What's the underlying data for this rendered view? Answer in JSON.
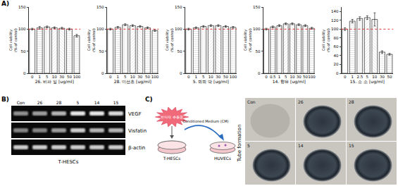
{
  "panel_labels": [
    "A)",
    "B)",
    "C)"
  ],
  "chart_data": [
    {
      "type": "bar",
      "categories": [
        "0",
        "1",
        "5",
        "10",
        "30",
        "50",
        "100"
      ],
      "values": [
        100,
        103,
        105,
        103,
        102,
        100,
        85
      ],
      "errors": [
        2,
        3,
        2,
        2,
        2,
        2,
        3
      ],
      "x_label": "26. 비파 잎 [ug/ml]",
      "y_label": "Cell viability\n(% of control)",
      "ylim": [
        0,
        150
      ],
      "yticks": [
        0,
        50,
        100,
        150
      ],
      "color": "#d9d9d9",
      "reference_line": 100
    },
    {
      "type": "bar",
      "categories": [
        "0",
        "1",
        "5",
        "10",
        "30",
        "50",
        "100"
      ],
      "values": [
        100,
        104,
        110,
        108,
        106,
        103,
        97
      ],
      "errors": [
        2,
        2,
        2,
        2,
        2,
        2,
        2
      ],
      "x_label": "28. 미선초 [ug/ml]",
      "y_label": "Cell viability\n(% of control)",
      "ylim": [
        0,
        150
      ],
      "yticks": [
        0,
        50,
        100,
        150
      ],
      "color": "#d9d9d9",
      "reference_line": 100
    },
    {
      "type": "bar",
      "categories": [
        "0",
        "1",
        "5",
        "10",
        "30",
        "50",
        "100"
      ],
      "values": [
        100,
        103,
        106,
        108,
        108,
        106,
        104
      ],
      "errors": [
        2,
        2,
        2,
        2,
        2,
        2,
        2
      ],
      "x_label": "5. 뫼뫼 박 [ug/ml]",
      "y_label": "Cell viability\n(% of control)",
      "ylim": [
        0,
        150
      ],
      "yticks": [
        0,
        50,
        100,
        150
      ],
      "color": "#d9d9d9",
      "reference_line": 100
    },
    {
      "type": "bar",
      "categories": [
        "0",
        "0.5",
        "1",
        "5",
        "10",
        "30",
        "50",
        "100"
      ],
      "values": [
        100,
        105,
        108,
        112,
        112,
        110,
        108,
        102
      ],
      "errors": [
        2,
        2,
        2,
        2,
        2,
        2,
        2,
        2
      ],
      "x_label": "14. 향유 [ug/ml]",
      "y_label": "Cell viability\n(% of control)",
      "ylim": [
        0,
        150
      ],
      "yticks": [
        0,
        50,
        100,
        150
      ],
      "color": "#d9d9d9",
      "reference_line": 100
    },
    {
      "type": "bar",
      "categories": [
        "0",
        "1",
        "2.5",
        "5",
        "10",
        "30",
        "50"
      ],
      "values": [
        100,
        118,
        124,
        126,
        122,
        48,
        43
      ],
      "errors": [
        3,
        4,
        4,
        4,
        15,
        3,
        2
      ],
      "x_label": "15. 소 소 [ug/ml]",
      "y_label": "Cell viability\n(% of control)",
      "ylim": [
        0,
        150
      ],
      "yticks": [
        0,
        20,
        40,
        60,
        80,
        100,
        120,
        140
      ],
      "color": "#d9d9d9",
      "reference_line": 100
    }
  ],
  "gel": {
    "lanes": [
      "Con",
      "26",
      "28",
      "5",
      "14",
      "15"
    ],
    "rows": [
      {
        "name": "VEGF",
        "intensities": [
          0.55,
          0.6,
          0.7,
          0.9,
          0.9,
          0.85
        ]
      },
      {
        "name": "Visfatin",
        "intensities": [
          0.5,
          0.5,
          0.6,
          0.8,
          0.7,
          0.7
        ]
      },
      {
        "name": "β-actin",
        "intensities": [
          0.8,
          0.8,
          0.8,
          0.8,
          0.8,
          0.8
        ]
      }
    ],
    "caption": "T-HESCs"
  },
  "diagram": {
    "extract_label": "한약재 추출물",
    "left_dish": "T-HESCs",
    "arrow_label": "Conditioned Medium (CM)",
    "right_dish": "HUVECs",
    "images": {
      "title": "Tube formation",
      "labels": [
        "Con",
        "26",
        "28",
        "5",
        "14",
        "15"
      ]
    }
  }
}
